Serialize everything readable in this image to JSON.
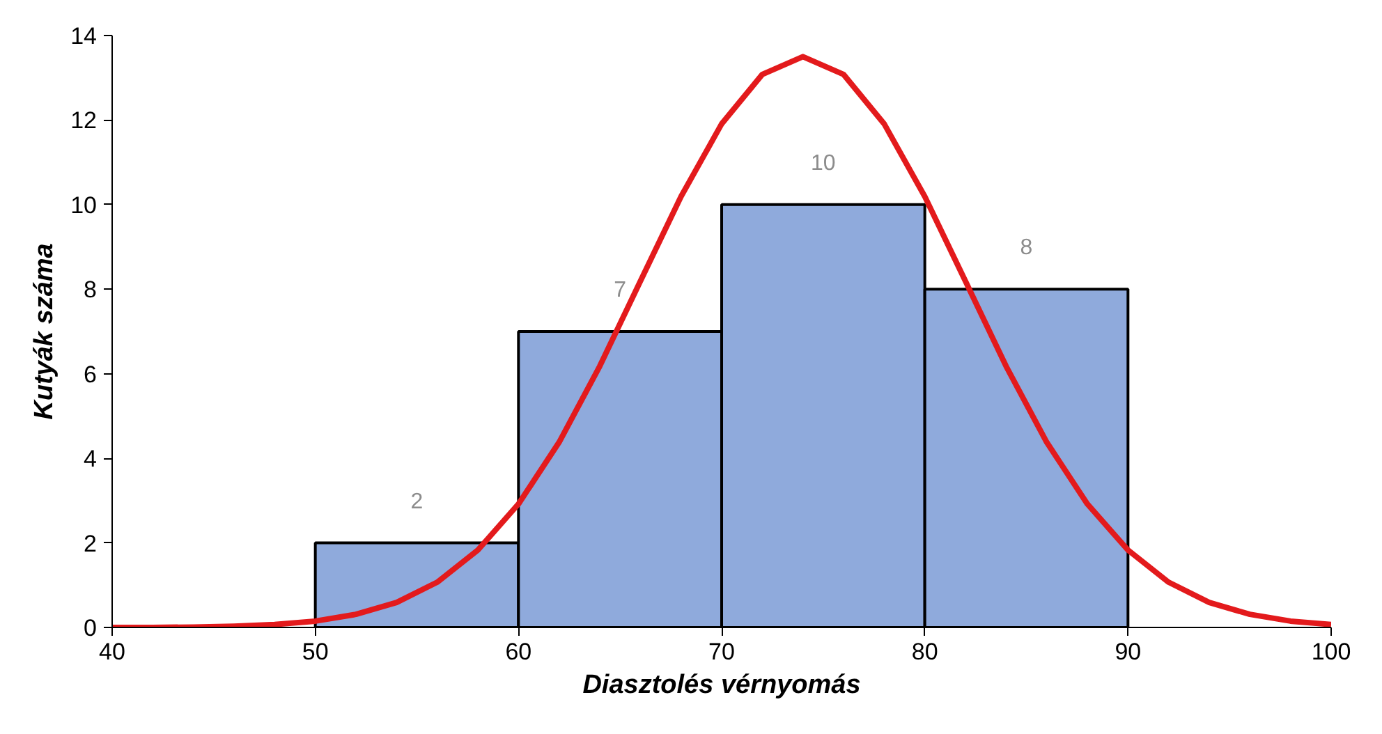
{
  "chart_data": {
    "type": "histogram",
    "xlabel": "Diasztolés vérnyomás",
    "ylabel": "Kutyák száma",
    "bins": [
      50,
      60,
      70,
      80,
      90
    ],
    "values": [
      2,
      7,
      10,
      8
    ],
    "color": "#8faadc",
    "value_labels": [
      "2",
      "7",
      "10",
      "8"
    ],
    "series": [
      {
        "type": "line",
        "color": "#e31a1c",
        "x": [
          40,
          42,
          44,
          46,
          48,
          50,
          52,
          54,
          56,
          58,
          60,
          62,
          64,
          66,
          68,
          70,
          72,
          74,
          76,
          78,
          80,
          82,
          84,
          86,
          88,
          90,
          92,
          94,
          96,
          98,
          100
        ],
        "values": [
          0.0,
          0.0,
          0.01,
          0.03,
          0.07,
          0.15,
          0.31,
          0.59,
          1.07,
          1.83,
          2.92,
          4.38,
          6.18,
          8.19,
          10.19,
          11.91,
          13.08,
          13.5,
          13.08,
          11.91,
          10.19,
          8.19,
          6.18,
          4.38,
          2.92,
          1.83,
          1.07,
          0.59,
          0.31,
          0.15,
          0.07
        ]
      }
    ],
    "xlim": [
      40,
      100
    ],
    "xticks": [
      40,
      50,
      60,
      70,
      80,
      90,
      100
    ],
    "ylim": [
      0,
      14
    ],
    "yticks": [
      0,
      2,
      4,
      6,
      8,
      10,
      12,
      14
    ],
    "grid": false
  }
}
